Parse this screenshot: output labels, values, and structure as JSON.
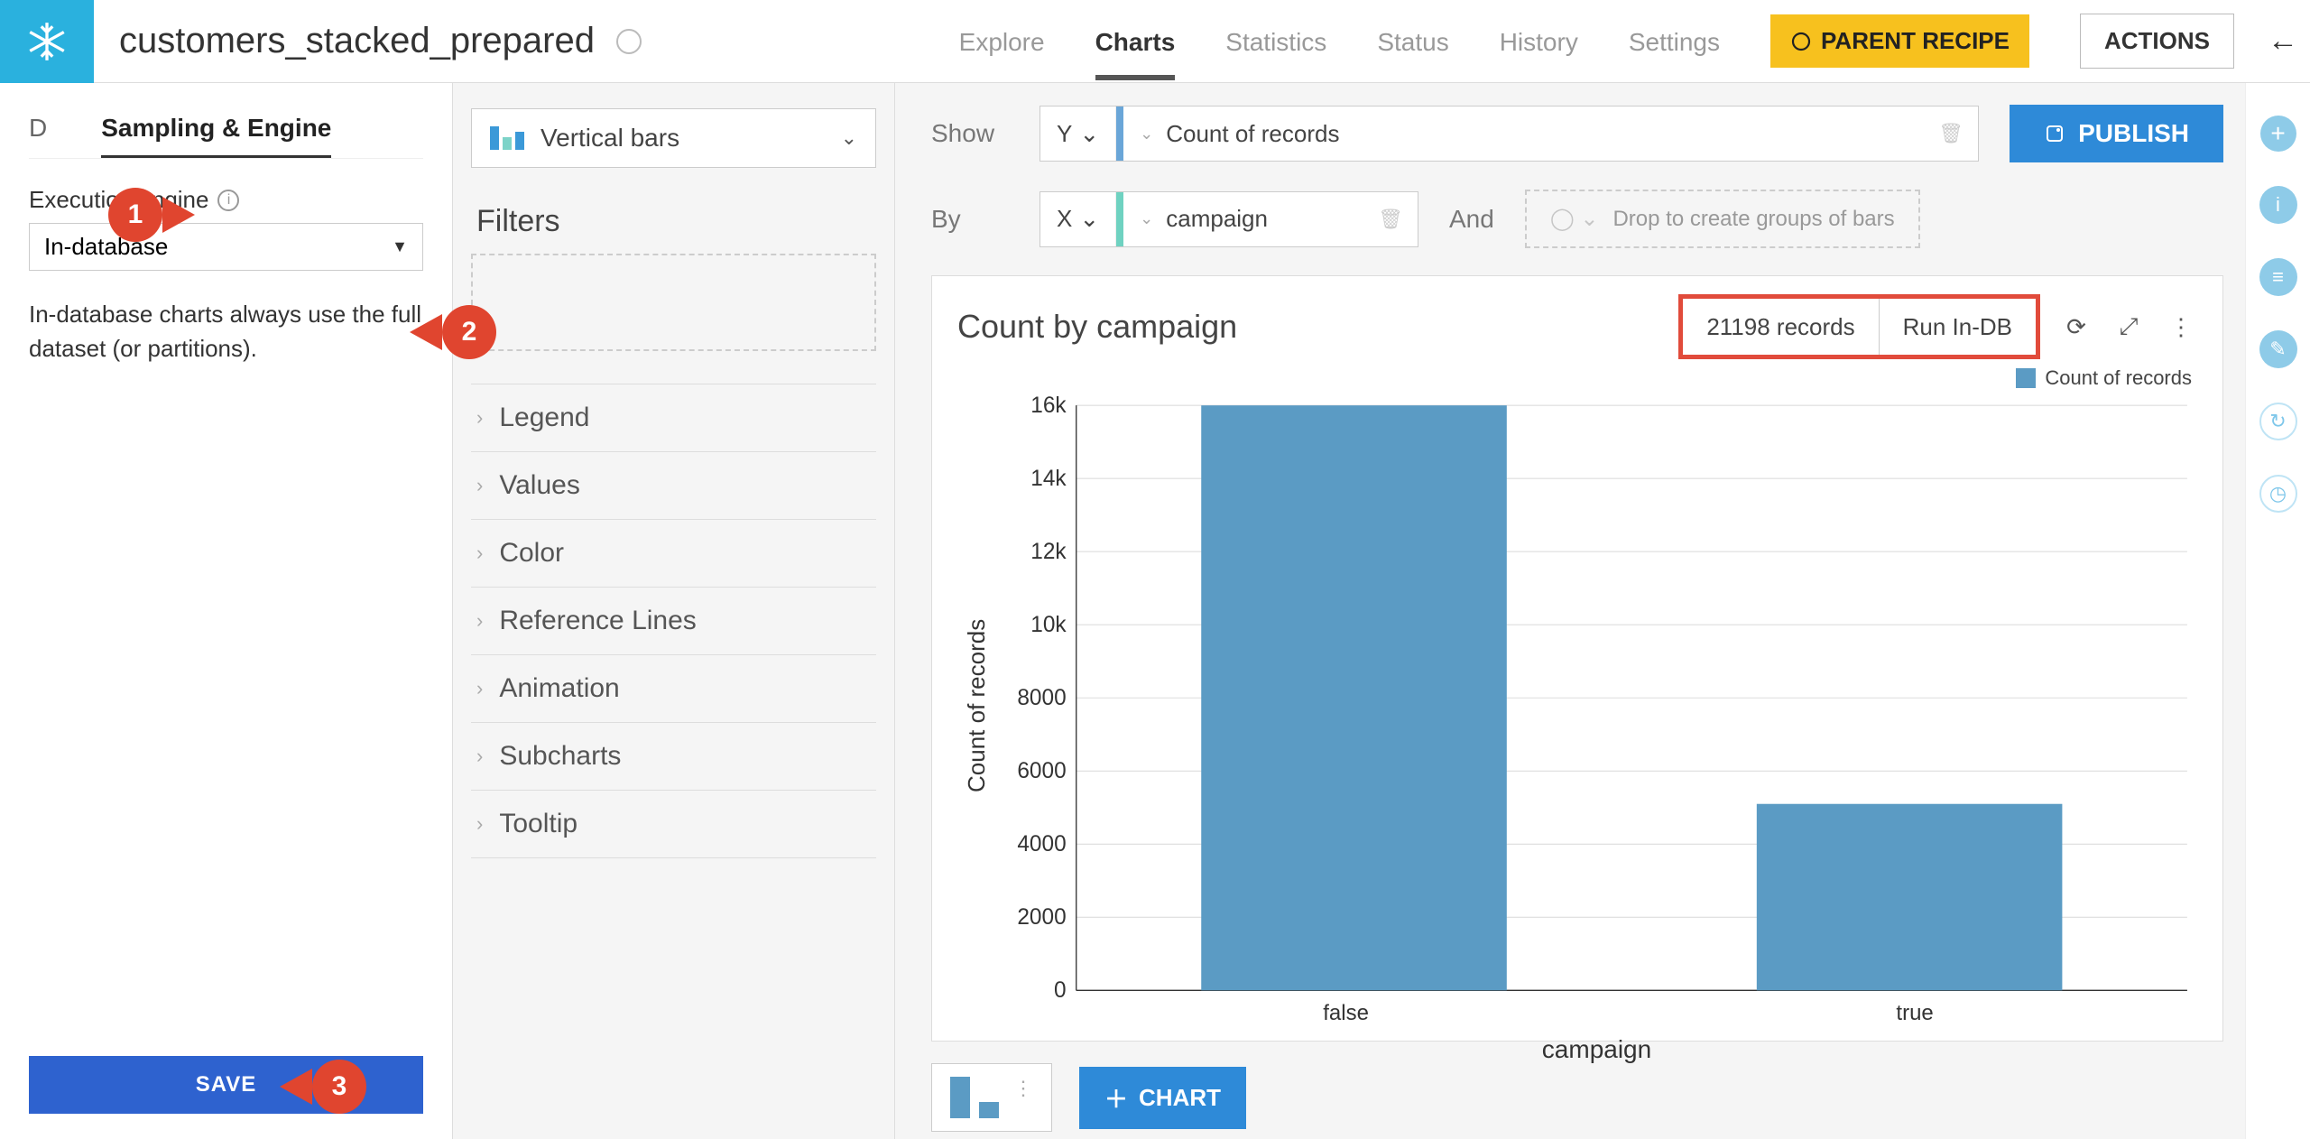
{
  "header": {
    "dataset_title": "customers_stacked_prepared",
    "tabs": [
      "Explore",
      "Charts",
      "Statistics",
      "Status",
      "History",
      "Settings"
    ],
    "active_tab": "Charts",
    "parent_recipe_label": "PARENT RECIPE",
    "actions_label": "ACTIONS"
  },
  "left": {
    "subtabs": [
      "D",
      "Sampling & Engine"
    ],
    "active_subtab": "Sampling & Engine",
    "engine_label": "Execution engine",
    "engine_value": "In-database",
    "help_text": "In-database charts always use the full dataset (or partitions).",
    "save_label": "SAVE"
  },
  "mid": {
    "chart_type_label": "Vertical bars",
    "filters_title": "Filters",
    "accordion": [
      "Legend",
      "Values",
      "Color",
      "Reference Lines",
      "Animation",
      "Subcharts",
      "Tooltip"
    ]
  },
  "main": {
    "show_label": "Show",
    "by_label": "By",
    "and_label": "And",
    "y_axis_tag": "Y",
    "y_metric": "Count of records",
    "x_axis_tag": "X",
    "x_dimension": "campaign",
    "group_placeholder": "Drop to create groups of bars",
    "publish_label": "PUBLISH",
    "chart_title_text": "Count by campaign",
    "records_text": "21198 records",
    "run_text": "Run In-DB",
    "legend_label": "Count of records",
    "add_chart_label": "CHART",
    "chart": {
      "type": "bar",
      "categories": [
        "false",
        "true"
      ],
      "values": [
        16000,
        5100
      ],
      "bar_color": "#5b9bc4",
      "ylim": [
        0,
        16000
      ],
      "ytick_step": 2000,
      "ytick_labels": [
        "0",
        "2000",
        "4000",
        "6000",
        "8000",
        "10k",
        "12k",
        "14k",
        "16k"
      ],
      "y_axis_title": "Count of records",
      "x_axis_title": "campaign",
      "grid_color": "#dddddd",
      "background_color": "#ffffff",
      "axis_color": "#333333",
      "tick_fontsize": 22,
      "axis_title_fontsize": 26,
      "bar_width_ratio": 0.55
    }
  },
  "callouts": {
    "1": "1",
    "2": "2",
    "3": "3"
  },
  "colors": {
    "accent_blue": "#2e8ad8",
    "save_blue": "#2e62cf",
    "callout_red": "#e0452f",
    "highlight_box": "#e14b3b",
    "parent_recipe_bg": "#f7c11e",
    "logo_bg": "#2ab1de",
    "y_accent": "#6aa6d8",
    "x_accent": "#6fd2c1"
  }
}
